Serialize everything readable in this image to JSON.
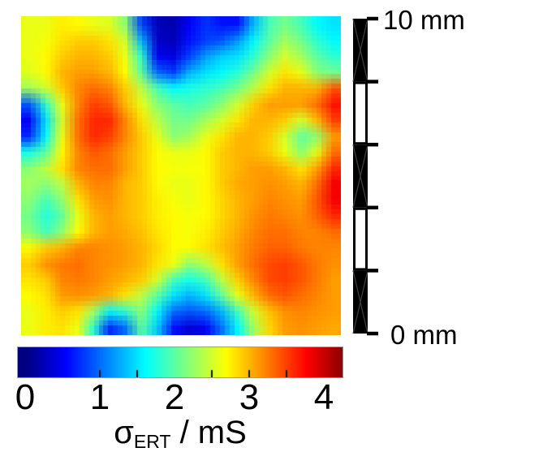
{
  "figure": {
    "background": "#ffffff",
    "scale_bar": {
      "top_label": "10 mm",
      "bottom_label": "0 mm",
      "length_mm": 10,
      "segments": [
        "black",
        "white",
        "black",
        "white",
        "black"
      ],
      "tick_color": "#000000"
    },
    "colorbar": {
      "minor_ticks": [
        1,
        1.5,
        2.5,
        3,
        3.5
      ],
      "label_symbol": "σ",
      "label_subscript": "ERT",
      "label_suffix": " / mS",
      "border_color": "#9a9a9a"
    }
  },
  "chart_data": {
    "type": "heatmap",
    "title": "",
    "colormap": "jet",
    "value_label": "σ_ERT / mS",
    "value_unit": "mS",
    "vmin": 0,
    "vmax": 4.3,
    "colorbar_ticks": [
      0,
      1,
      2,
      3,
      4
    ],
    "extent_mm": {
      "width": 10,
      "height": 10
    },
    "grid_rows": 20,
    "grid_cols": 20,
    "values": [
      [
        2.6,
        2.6,
        2.75,
        2.7,
        2.6,
        2.55,
        2.2,
        0.8,
        0.25,
        0.2,
        0.5,
        0.75,
        0.6,
        0.6,
        1.3,
        1.9,
        2.1,
        1.9,
        1.6,
        1.5
      ],
      [
        2.6,
        2.65,
        2.8,
        2.9,
        2.9,
        2.8,
        2.5,
        1.3,
        0.3,
        0.25,
        0.6,
        0.8,
        0.9,
        1.2,
        1.6,
        2.0,
        2.3,
        2.1,
        1.8,
        1.6
      ],
      [
        2.6,
        2.7,
        2.9,
        3.0,
        3.0,
        2.9,
        2.6,
        1.8,
        0.5,
        0.4,
        0.8,
        1.2,
        1.4,
        1.5,
        1.8,
        2.2,
        2.5,
        2.3,
        2.0,
        1.8
      ],
      [
        2.55,
        2.7,
        3.0,
        3.1,
        3.1,
        3.0,
        2.7,
        2.0,
        1.0,
        0.8,
        1.3,
        1.5,
        1.6,
        1.8,
        2.1,
        2.5,
        2.8,
        2.6,
        2.2,
        2.1
      ],
      [
        2.3,
        2.5,
        2.9,
        3.2,
        3.3,
        3.2,
        2.9,
        2.4,
        1.9,
        1.6,
        1.7,
        1.8,
        1.9,
        2.1,
        2.4,
        2.8,
        3.0,
        3.0,
        3.0,
        3.4
      ],
      [
        0.9,
        1.8,
        2.6,
        3.2,
        3.5,
        3.4,
        3.0,
        2.6,
        2.2,
        2.0,
        1.9,
        2.0,
        2.2,
        2.5,
        2.9,
        3.1,
        3.1,
        3.1,
        3.3,
        3.7
      ],
      [
        0.5,
        1.5,
        2.5,
        3.3,
        3.6,
        3.6,
        3.2,
        2.8,
        2.4,
        2.1,
        2.1,
        2.3,
        2.5,
        2.8,
        3.0,
        3.0,
        2.9,
        2.5,
        3.0,
        3.5
      ],
      [
        0.7,
        1.6,
        2.6,
        3.3,
        3.6,
        3.5,
        3.2,
        2.9,
        2.6,
        2.2,
        2.3,
        2.6,
        2.8,
        3.0,
        3.0,
        2.9,
        2.5,
        2.0,
        2.2,
        3.1
      ],
      [
        1.7,
        2.0,
        2.7,
        3.2,
        3.4,
        3.3,
        3.1,
        2.9,
        2.7,
        2.6,
        2.6,
        2.7,
        2.9,
        3.0,
        3.0,
        2.9,
        2.6,
        2.2,
        2.6,
        3.3
      ],
      [
        2.2,
        2.4,
        2.8,
        3.2,
        3.3,
        3.3,
        3.1,
        2.9,
        2.7,
        2.65,
        2.65,
        2.7,
        2.9,
        3.0,
        3.1,
        3.1,
        3.0,
        2.8,
        3.1,
        3.6
      ],
      [
        2.3,
        2.2,
        2.4,
        3.0,
        3.2,
        3.2,
        3.0,
        2.9,
        2.7,
        2.6,
        2.6,
        2.7,
        2.9,
        3.05,
        3.1,
        3.15,
        3.1,
        3.0,
        3.3,
        3.8
      ],
      [
        2.2,
        1.9,
        2.2,
        2.8,
        3.1,
        3.15,
        3.0,
        2.9,
        2.75,
        2.65,
        2.6,
        2.7,
        2.85,
        3.0,
        3.1,
        3.2,
        3.15,
        3.1,
        3.4,
        3.8
      ],
      [
        2.1,
        1.75,
        2.0,
        2.6,
        3.0,
        3.1,
        3.0,
        2.9,
        2.75,
        2.7,
        2.65,
        2.7,
        2.85,
        3.0,
        3.15,
        3.25,
        3.2,
        3.15,
        3.35,
        3.6
      ],
      [
        2.2,
        1.9,
        2.2,
        2.7,
        3.0,
        3.1,
        3.05,
        2.95,
        2.8,
        2.7,
        2.65,
        2.75,
        2.9,
        3.05,
        3.2,
        3.3,
        3.3,
        3.2,
        3.2,
        3.3
      ],
      [
        2.7,
        2.9,
        3.0,
        3.2,
        3.2,
        3.15,
        3.1,
        3.0,
        2.85,
        2.7,
        2.7,
        2.8,
        2.95,
        3.1,
        3.25,
        3.35,
        3.35,
        3.25,
        3.2,
        3.2
      ],
      [
        2.9,
        3.15,
        3.25,
        3.3,
        3.2,
        3.15,
        3.1,
        3.0,
        2.8,
        2.6,
        2.2,
        2.4,
        2.8,
        3.1,
        3.3,
        3.45,
        3.5,
        3.4,
        3.25,
        3.15
      ],
      [
        2.8,
        2.9,
        3.2,
        3.25,
        3.2,
        3.1,
        3.0,
        2.9,
        2.5,
        1.9,
        1.7,
        1.9,
        2.4,
        2.9,
        3.2,
        3.45,
        3.5,
        3.4,
        3.25,
        3.1
      ],
      [
        2.7,
        2.8,
        3.1,
        3.15,
        3.1,
        3.0,
        2.8,
        2.4,
        2.0,
        1.5,
        1.3,
        1.5,
        2.0,
        2.6,
        3.0,
        3.3,
        3.4,
        3.3,
        3.2,
        3.1
      ],
      [
        2.6,
        2.75,
        2.9,
        2.8,
        2.3,
        1.6,
        1.8,
        2.2,
        1.6,
        1.0,
        0.9,
        1.0,
        1.3,
        1.9,
        2.5,
        2.95,
        3.15,
        3.2,
        3.15,
        3.1
      ],
      [
        2.6,
        2.75,
        2.8,
        2.6,
        1.8,
        0.7,
        1.0,
        2.0,
        1.4,
        0.6,
        0.35,
        0.5,
        1.0,
        1.6,
        2.3,
        2.85,
        3.1,
        3.15,
        3.1,
        3.05
      ]
    ]
  }
}
